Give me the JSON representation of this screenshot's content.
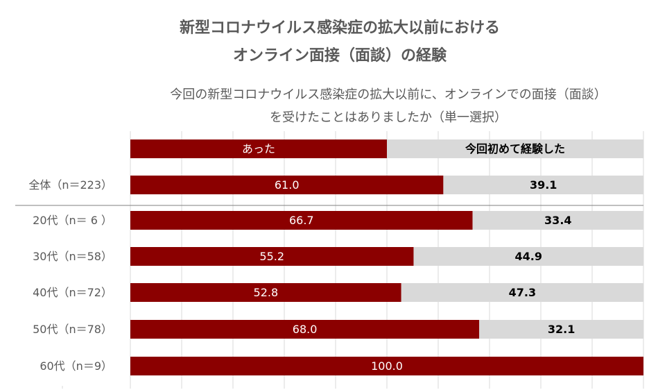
{
  "title_line1": "新型コロナウイルス感染症の拡大以前における",
  "title_line2": "オンライン面接（面談）の経験",
  "subtitle_line1": "今回の新型コロナウイルス感染症の拡大以前に、オンラインでの面接（面談）",
  "subtitle_line2": "を受けたことはありましたか（単一選択）",
  "colors": {
    "yes": "#8B0000",
    "no": "#D9D9D9",
    "grid": "#D9D9D9",
    "text": "#595959"
  },
  "chart_data": {
    "type": "bar",
    "orientation": "horizontal",
    "stacked": true,
    "percent": true,
    "xlim": [
      0,
      100
    ],
    "grid": true,
    "legend_position": "top",
    "legend": [
      "あった",
      "今回初めて経験した"
    ],
    "categories": [
      "全体（n＝223）",
      "20代（n＝ 6 ）",
      "30代（n＝58）",
      "40代（n＝72）",
      "50代（n＝78）",
      "60代（n＝9）"
    ],
    "series": [
      {
        "name": "あった",
        "values": [
          61.0,
          66.7,
          55.2,
          52.8,
          68.0,
          100.0
        ],
        "labels": [
          "61.0",
          "66.7",
          "55.2",
          "52.8",
          "68.0",
          "100.0"
        ]
      },
      {
        "name": "今回初めて経験した",
        "values": [
          39.1,
          33.4,
          44.9,
          47.3,
          32.1,
          0
        ],
        "labels": [
          "39.1",
          "33.4",
          "44.9",
          "47.3",
          "32.1",
          ""
        ]
      }
    ]
  }
}
